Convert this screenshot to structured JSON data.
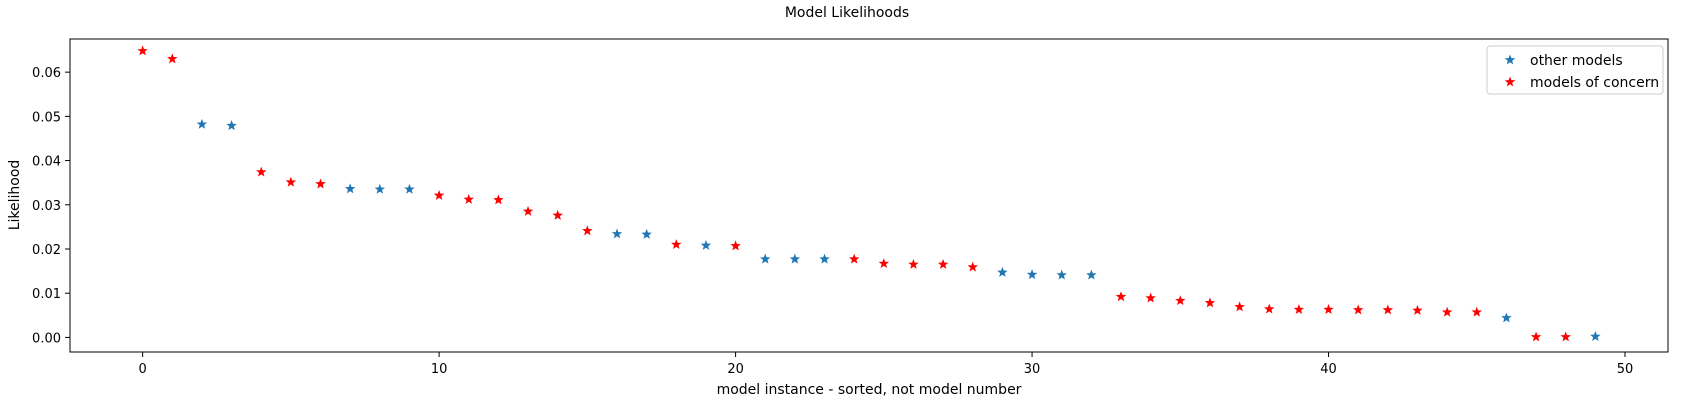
{
  "chart_data": {
    "type": "scatter",
    "title": "Model Likelihoods",
    "xlabel": "model instance - sorted, not model number",
    "ylabel": "Likelihood",
    "xlim": [
      -2.45,
      51.45
    ],
    "ylim": [
      -0.0033,
      0.0675
    ],
    "xticks": [
      0,
      10,
      20,
      30,
      40,
      50
    ],
    "xtick_labels": [
      "0",
      "10",
      "20",
      "30",
      "40",
      "50"
    ],
    "yticks": [
      0,
      0.01,
      0.02,
      0.03,
      0.04,
      0.05,
      0.06
    ],
    "ytick_labels": [
      "0.00",
      "0.01",
      "0.02",
      "0.03",
      "0.04",
      "0.05",
      "0.06"
    ],
    "grid": false,
    "legend_position": "top-right",
    "marker": "star",
    "series": [
      {
        "name": "other models",
        "color": "#1f77b4",
        "x": [
          2,
          3,
          7,
          8,
          9,
          16,
          17,
          19,
          21,
          22,
          23,
          29,
          30,
          31,
          32,
          46,
          49
        ],
        "y": [
          0.0482,
          0.0479,
          0.0336,
          0.0335,
          0.0335,
          0.0234,
          0.0233,
          0.0208,
          0.0177,
          0.0177,
          0.0177,
          0.0147,
          0.0142,
          0.0141,
          0.0141,
          0.0044,
          0.0002
        ]
      },
      {
        "name": "models of concern",
        "color": "#ff0000",
        "x": [
          0,
          1,
          4,
          5,
          6,
          10,
          11,
          12,
          13,
          14,
          15,
          18,
          20,
          24,
          25,
          26,
          27,
          28,
          33,
          34,
          35,
          36,
          37,
          38,
          39,
          40,
          41,
          42,
          43,
          44,
          45,
          47,
          48
        ],
        "y": [
          0.0648,
          0.063,
          0.0374,
          0.0351,
          0.0347,
          0.0321,
          0.0312,
          0.0311,
          0.0285,
          0.0276,
          0.0241,
          0.021,
          0.0207,
          0.0177,
          0.0167,
          0.0165,
          0.0165,
          0.0159,
          0.0092,
          0.0089,
          0.0083,
          0.0078,
          0.0069,
          0.0064,
          0.0063,
          0.0063,
          0.0062,
          0.0062,
          0.0061,
          0.0057,
          0.0057,
          0.0001,
          0.0001
        ]
      }
    ]
  }
}
